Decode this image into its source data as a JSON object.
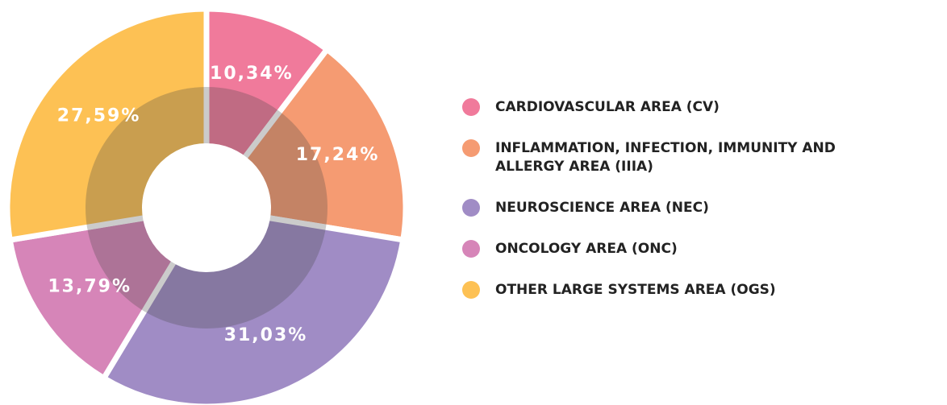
{
  "chart_data": {
    "type": "donut",
    "categories": [
      "CARDIOVASCULAR AREA (CV)",
      "INFLAMMATION, INFECTION, IMMUNITY AND ALLERGY AREA (IIIA)",
      "NEUROSCIENCE AREA (NEC)",
      "ONCOLOGY AREA (ONC)",
      "OTHER LARGE SYSTEMS AREA (OGS)"
    ],
    "values": [
      10.34,
      17.24,
      31.03,
      13.79,
      27.59
    ],
    "value_labels": [
      "10,34%",
      "17,24%",
      "31,03%",
      "13,79%",
      "27,59%"
    ],
    "colors": [
      "#f07a9b",
      "#f59b72",
      "#a08cc5",
      "#d685b8",
      "#fdc154"
    ],
    "legend": "right"
  }
}
